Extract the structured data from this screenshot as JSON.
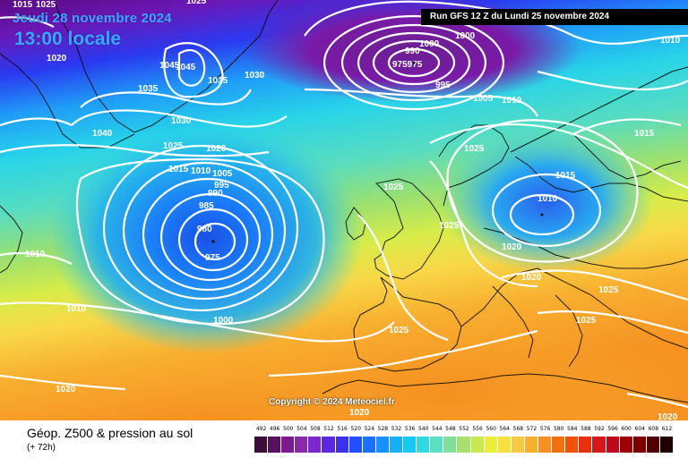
{
  "header": {
    "date_line": "Jeudi 28 novembre 2024",
    "time_line": "13:00 locale",
    "run_info": "Run GFS 12 Z du Lundi 25 novembre 2024"
  },
  "footer": {
    "title": "Géop. Z500 & pression au sol",
    "subtitle": "(+ 72h)",
    "copyright": "Copyright © 2024 Meteociel.fr"
  },
  "scale": {
    "labels": [
      "492",
      "496",
      "500",
      "504",
      "508",
      "512",
      "516",
      "520",
      "524",
      "528",
      "532",
      "536",
      "540",
      "544",
      "548",
      "552",
      "556",
      "560",
      "564",
      "568",
      "572",
      "576",
      "580",
      "584",
      "588",
      "592",
      "596",
      "600",
      "604",
      "608",
      "612"
    ],
    "colors": [
      "#3a0f3a",
      "#5a1060",
      "#7a1a8c",
      "#8a2aa8",
      "#7c28d0",
      "#5a28e0",
      "#3a30f0",
      "#2050ff",
      "#1a70ff",
      "#1890ff",
      "#14b0f8",
      "#18c8f0",
      "#30d8e0",
      "#58e0c0",
      "#80e098",
      "#a8e070",
      "#c8e850",
      "#e8f038",
      "#f8e040",
      "#f8c840",
      "#f8b030",
      "#f89020",
      "#f07010",
      "#f05008",
      "#e83010",
      "#d81818",
      "#c00818",
      "#a00008",
      "#800000",
      "#500000",
      "#200000"
    ]
  },
  "isobars": {
    "labels": [
      "1025",
      "1015",
      "1020",
      "1045",
      "1035",
      "1030",
      "1040",
      "1035",
      "1030",
      "1040",
      "1025",
      "1020",
      "1015",
      "1010",
      "1005",
      "995",
      "990",
      "985",
      "980",
      "975",
      "1010",
      "1010",
      "1000",
      "1020",
      "975975",
      "980",
      "990",
      "1000",
      "995",
      "1005",
      "1010",
      "1010",
      "1025",
      "1025",
      "1025",
      "1015",
      "1015",
      "1010",
      "1020",
      "1020",
      "1025",
      "1025",
      "1025",
      "1020",
      "1020"
    ]
  }
}
